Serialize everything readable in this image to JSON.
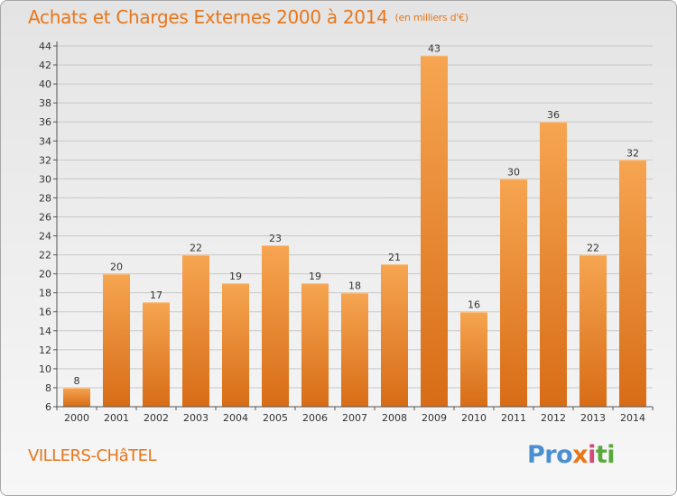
{
  "header": {
    "title": "Achats et Charges Externes 2000 à 2014",
    "unit": "(en milliers d'€)"
  },
  "footer": {
    "city": "VILLERS-CHâTEL",
    "logo_parts": [
      "Pro",
      "x",
      "i",
      "ti"
    ]
  },
  "colors": {
    "accent": "#e8761b",
    "bar_top": "#f6a551",
    "bar_bottom": "#d86c16",
    "grid": "#c8c8c8"
  },
  "chart_data": {
    "type": "bar",
    "categories": [
      "2000",
      "2001",
      "2002",
      "2003",
      "2004",
      "2005",
      "2006",
      "2007",
      "2008",
      "2009",
      "2010",
      "2011",
      "2012",
      "2013",
      "2014"
    ],
    "values": [
      8,
      20,
      17,
      22,
      19,
      23,
      19,
      18,
      21,
      43,
      16,
      30,
      36,
      22,
      32
    ],
    "title": "Achats et Charges Externes 2000 à 2014",
    "ylim": [
      6,
      44
    ],
    "yticks": [
      6,
      8,
      10,
      12,
      14,
      16,
      18,
      20,
      22,
      24,
      26,
      28,
      30,
      32,
      34,
      36,
      38,
      40,
      42,
      44
    ],
    "grid": true
  }
}
